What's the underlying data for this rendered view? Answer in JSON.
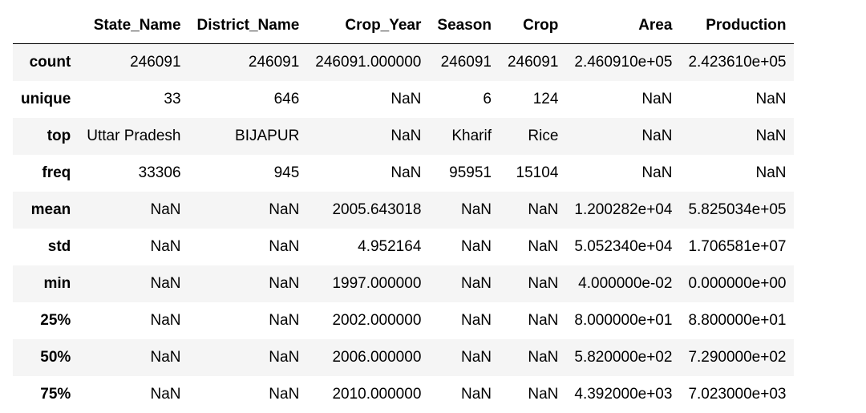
{
  "table": {
    "columns": [
      "",
      "State_Name",
      "District_Name",
      "Crop_Year",
      "Season",
      "Crop",
      "Area",
      "Production"
    ],
    "rows": [
      {
        "label": "count",
        "cells": [
          "246091",
          "246091",
          "246091.000000",
          "246091",
          "246091",
          "2.460910e+05",
          "2.423610e+05"
        ]
      },
      {
        "label": "unique",
        "cells": [
          "33",
          "646",
          "NaN",
          "6",
          "124",
          "NaN",
          "NaN"
        ]
      },
      {
        "label": "top",
        "cells": [
          "Uttar Pradesh",
          "BIJAPUR",
          "NaN",
          "Kharif",
          "Rice",
          "NaN",
          "NaN"
        ]
      },
      {
        "label": "freq",
        "cells": [
          "33306",
          "945",
          "NaN",
          "95951",
          "15104",
          "NaN",
          "NaN"
        ]
      },
      {
        "label": "mean",
        "cells": [
          "NaN",
          "NaN",
          "2005.643018",
          "NaN",
          "NaN",
          "1.200282e+04",
          "5.825034e+05"
        ]
      },
      {
        "label": "std",
        "cells": [
          "NaN",
          "NaN",
          "4.952164",
          "NaN",
          "NaN",
          "5.052340e+04",
          "1.706581e+07"
        ]
      },
      {
        "label": "min",
        "cells": [
          "NaN",
          "NaN",
          "1997.000000",
          "NaN",
          "NaN",
          "4.000000e-02",
          "0.000000e+00"
        ]
      },
      {
        "label": "25%",
        "cells": [
          "NaN",
          "NaN",
          "2002.000000",
          "NaN",
          "NaN",
          "8.000000e+01",
          "8.800000e+01"
        ]
      },
      {
        "label": "50%",
        "cells": [
          "NaN",
          "NaN",
          "2006.000000",
          "NaN",
          "NaN",
          "5.820000e+02",
          "7.290000e+02"
        ]
      },
      {
        "label": "75%",
        "cells": [
          "NaN",
          "NaN",
          "2010.000000",
          "NaN",
          "NaN",
          "4.392000e+03",
          "7.023000e+03"
        ]
      }
    ]
  }
}
